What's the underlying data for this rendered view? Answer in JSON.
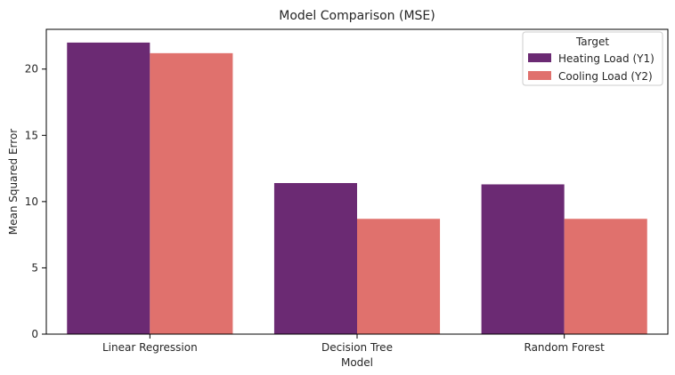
{
  "chart_data": {
    "type": "bar",
    "title": "Model Comparison (MSE)",
    "xlabel": "Model",
    "ylabel": "Mean Squared Error",
    "categories": [
      "Linear Regression",
      "Decision Tree",
      "Random Forest"
    ],
    "series": [
      {
        "name": "Heating Load (Y1)",
        "color": "#6b2a73",
        "values": [
          22.0,
          11.4,
          11.3
        ]
      },
      {
        "name": "Cooling Load (Y2)",
        "color": "#e0716d",
        "values": [
          21.2,
          8.7,
          8.7
        ]
      }
    ],
    "ylim": [
      0,
      23
    ],
    "yticks": [
      0,
      5,
      10,
      15,
      20
    ],
    "grid": false,
    "legend": {
      "title": "Target",
      "placement": "top-right"
    }
  }
}
